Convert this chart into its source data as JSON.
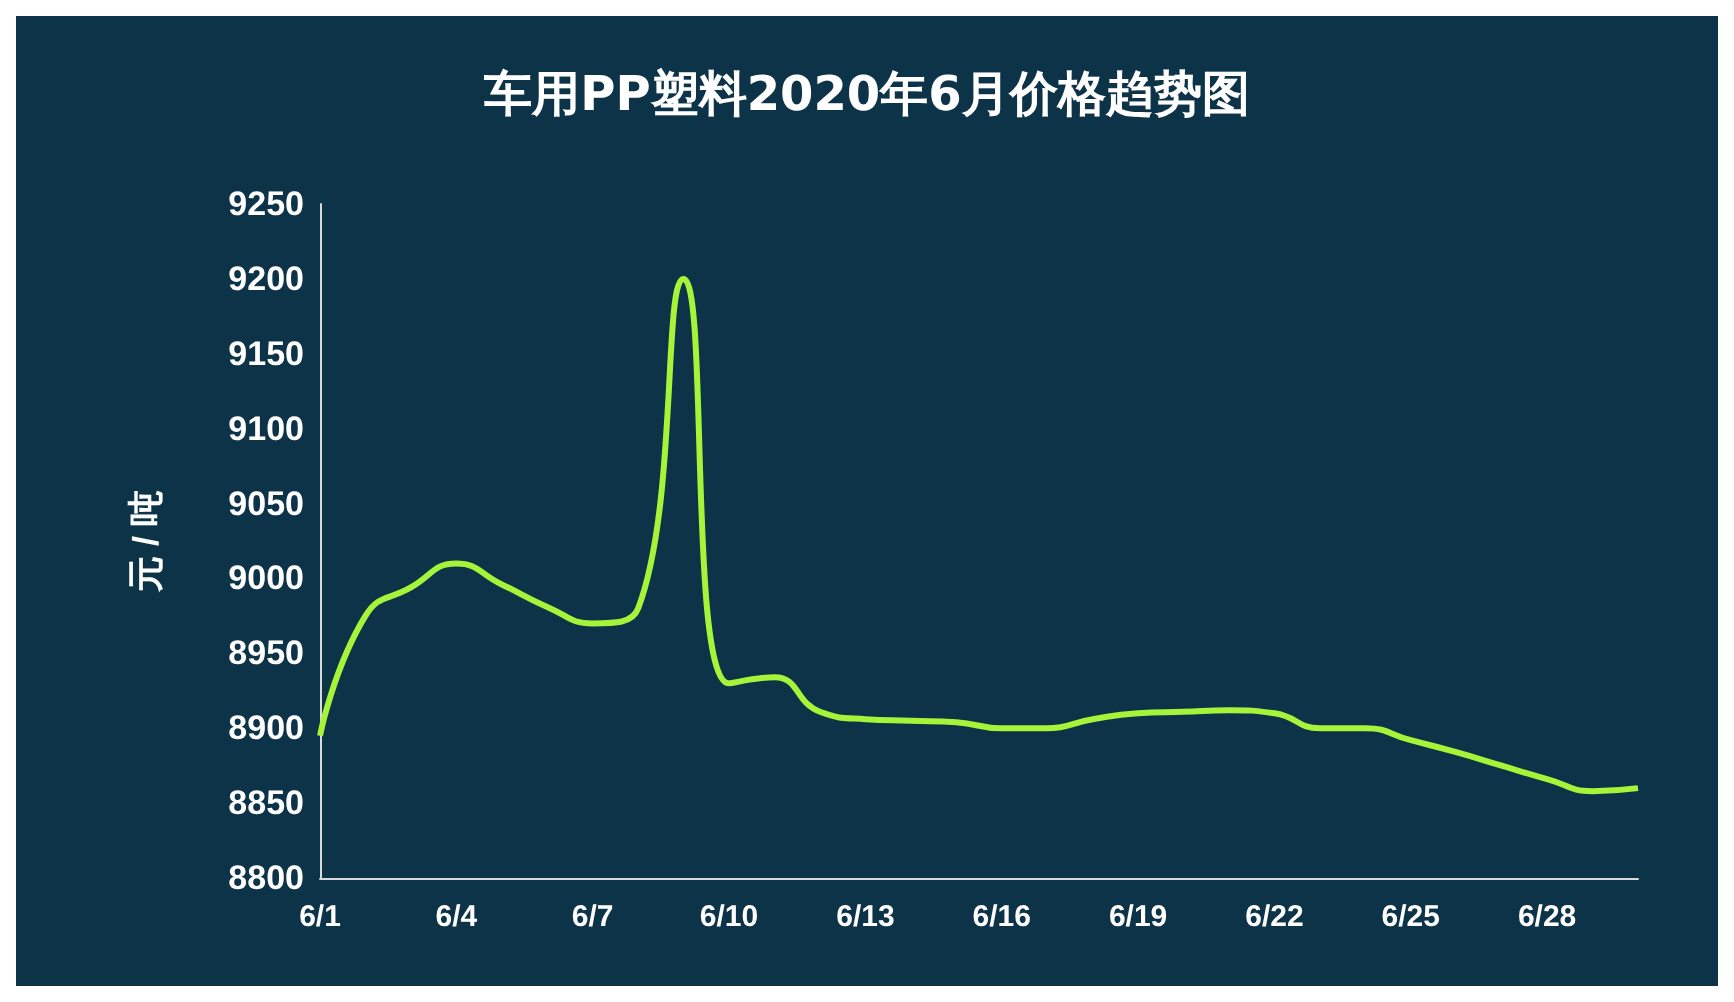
{
  "chart_data": {
    "type": "line",
    "title": "车用PP塑料2020年6月价格趋势图",
    "ylabel": "元 / 吨",
    "categories": [
      "6/1",
      null,
      null,
      "6/4",
      null,
      null,
      "6/7",
      null,
      null,
      "6/10",
      null,
      null,
      "6/13",
      null,
      null,
      "6/16",
      null,
      null,
      "6/19",
      null,
      null,
      "6/22",
      null,
      null,
      "6/25",
      null,
      null,
      "6/28",
      null,
      null
    ],
    "series": [
      {
        "color": "#a6f43a",
        "values": [
          8895,
          8975,
          8994,
          9010,
          8996,
          8981,
          8970,
          8980,
          9200,
          8930,
          8934,
          8911,
          8906,
          8905,
          8904,
          8900,
          8900,
          8906,
          8910,
          8911,
          8912,
          8910,
          8900,
          8900,
          8892,
          8884,
          8875,
          8866,
          8858,
          8860
        ]
      }
    ],
    "ylim": [
      8800,
      9250
    ],
    "yticks": [
      8800,
      8850,
      8900,
      8950,
      9000,
      9050,
      9100,
      9150,
      9200,
      9250
    ],
    "marker": "none",
    "line_style": "solid"
  }
}
